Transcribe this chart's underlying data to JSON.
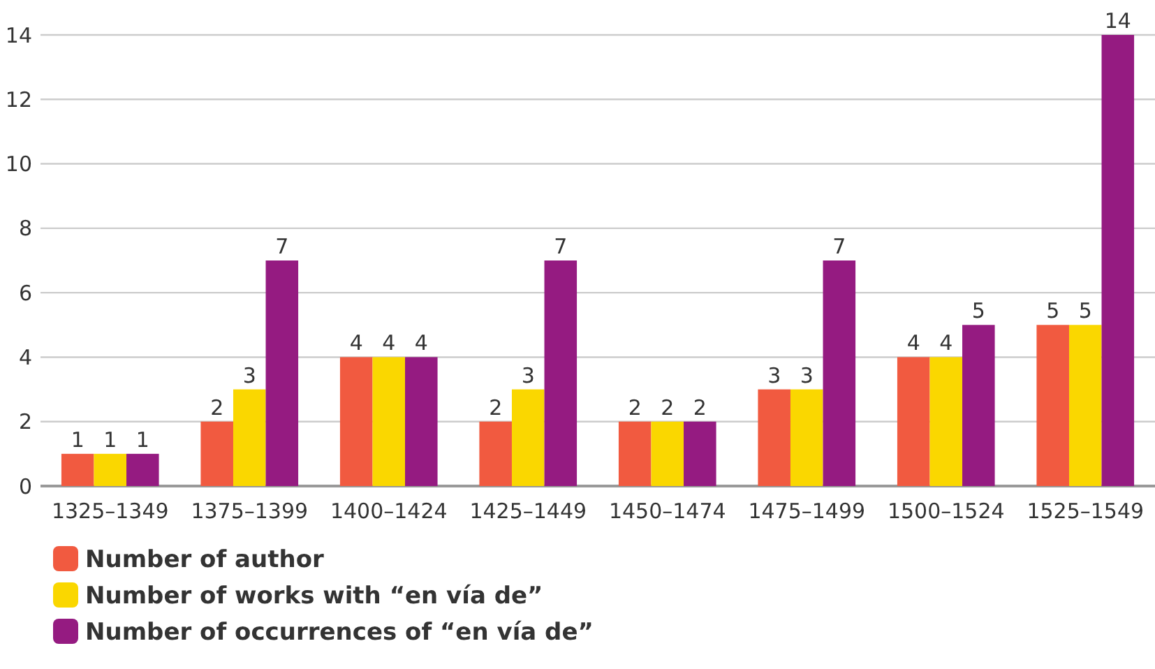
{
  "chart_data": {
    "type": "bar",
    "categories": [
      "1325–1349",
      "1375–1399",
      "1400–1424",
      "1425–1449",
      "1450–1474",
      "1475–1499",
      "1500–1524",
      "1525–1549"
    ],
    "series": [
      {
        "name": "Number of author",
        "color": "#f15a40",
        "values": [
          1,
          2,
          4,
          2,
          2,
          3,
          4,
          5
        ]
      },
      {
        "name": "Number of works with “en vía de”",
        "color": "#fad700",
        "values": [
          1,
          3,
          4,
          3,
          2,
          3,
          4,
          5
        ]
      },
      {
        "name": "Number of occurrences of “en vía de”",
        "color": "#951b81",
        "values": [
          1,
          7,
          4,
          7,
          2,
          7,
          5,
          14
        ]
      }
    ],
    "ylim": [
      0,
      14
    ],
    "yticks": [
      0,
      2,
      4,
      6,
      8,
      10,
      12,
      14
    ],
    "grid": "y",
    "legend": "bottom left",
    "data_labels": true
  }
}
